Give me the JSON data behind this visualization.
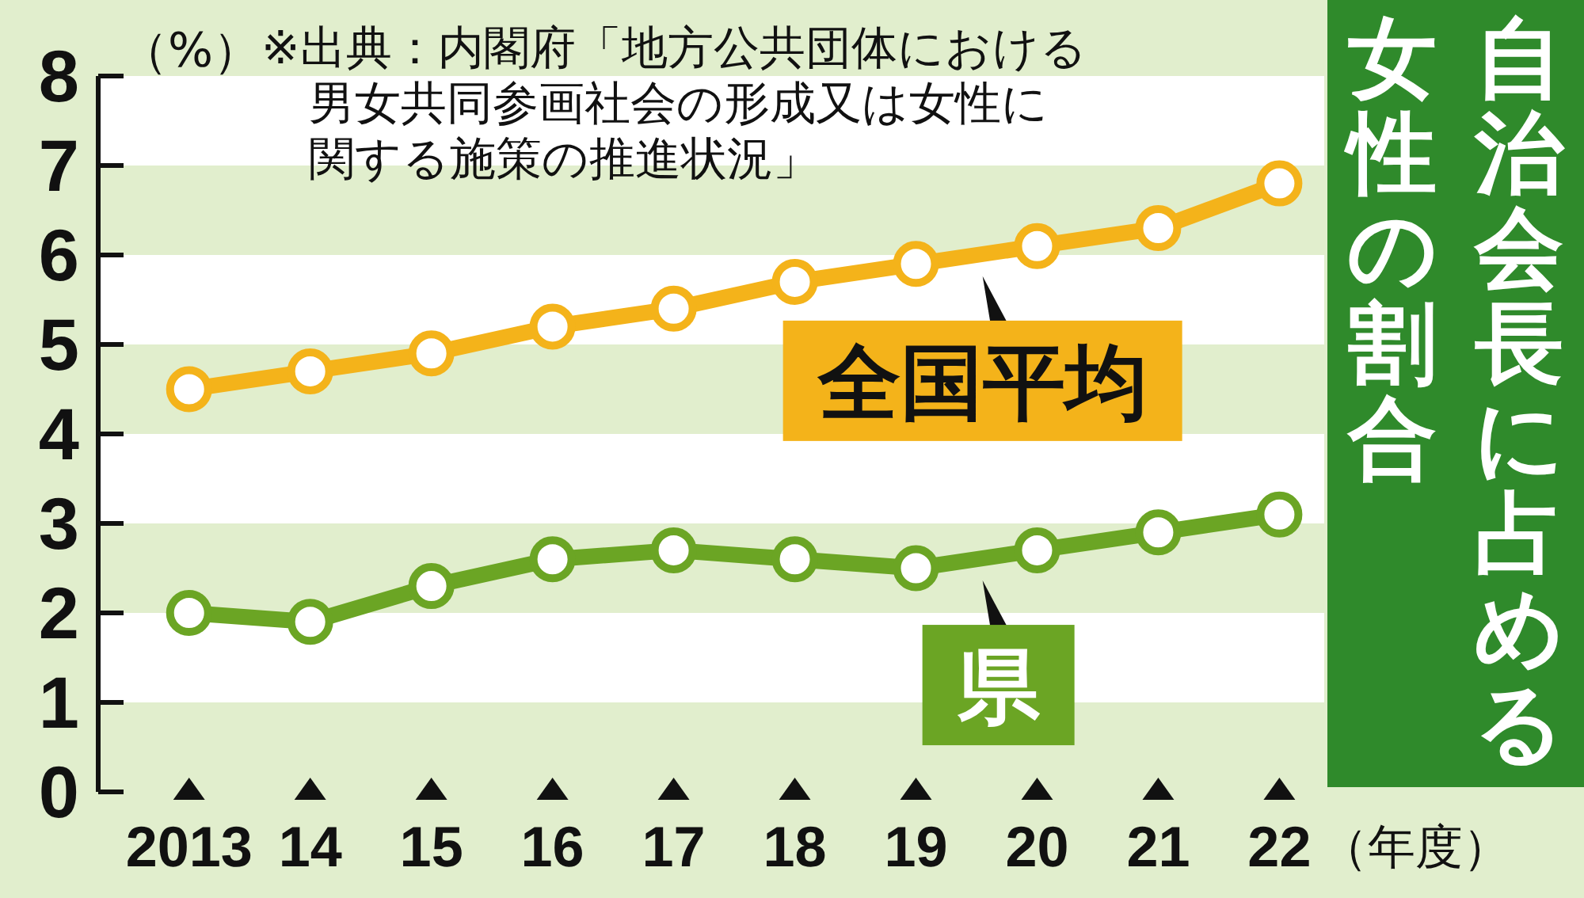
{
  "chart_data": {
    "type": "line",
    "title": "自治会長に占める女性の割合",
    "ylabel": "（%）",
    "xlabel": "（年度）",
    "annotations": [
      "※出典：内閣府「地方公共団体における男女共同参画社会の形成又は女性に関する施策の推進状況」"
    ],
    "categories": [
      "2013",
      "14",
      "15",
      "16",
      "17",
      "18",
      "19",
      "20",
      "21",
      "22"
    ],
    "series": [
      {
        "name": "全国平均",
        "color": "#f4b31a",
        "values": [
          4.5,
          4.7,
          4.9,
          5.2,
          5.4,
          5.7,
          5.9,
          6.1,
          6.3,
          6.8
        ]
      },
      {
        "name": "県",
        "color": "#6ba524",
        "values": [
          2.0,
          1.9,
          2.3,
          2.6,
          2.7,
          2.6,
          2.5,
          2.7,
          2.9,
          3.1
        ]
      }
    ],
    "ylim": [
      0,
      8
    ],
    "yticks": [
      0,
      1,
      2,
      3,
      4,
      5,
      6,
      7,
      8
    ],
    "marker": "circle",
    "line_style": "solid",
    "bands": [
      {
        "axis": "y",
        "from": 0,
        "to": 1,
        "color": "#e1eecd"
      },
      {
        "axis": "y",
        "from": 2,
        "to": 3,
        "color": "#e1eecd"
      },
      {
        "axis": "y",
        "from": 4,
        "to": 5,
        "color": "#e1eecd"
      },
      {
        "axis": "y",
        "from": 6,
        "to": 7,
        "color": "#e1eecd"
      }
    ]
  }
}
